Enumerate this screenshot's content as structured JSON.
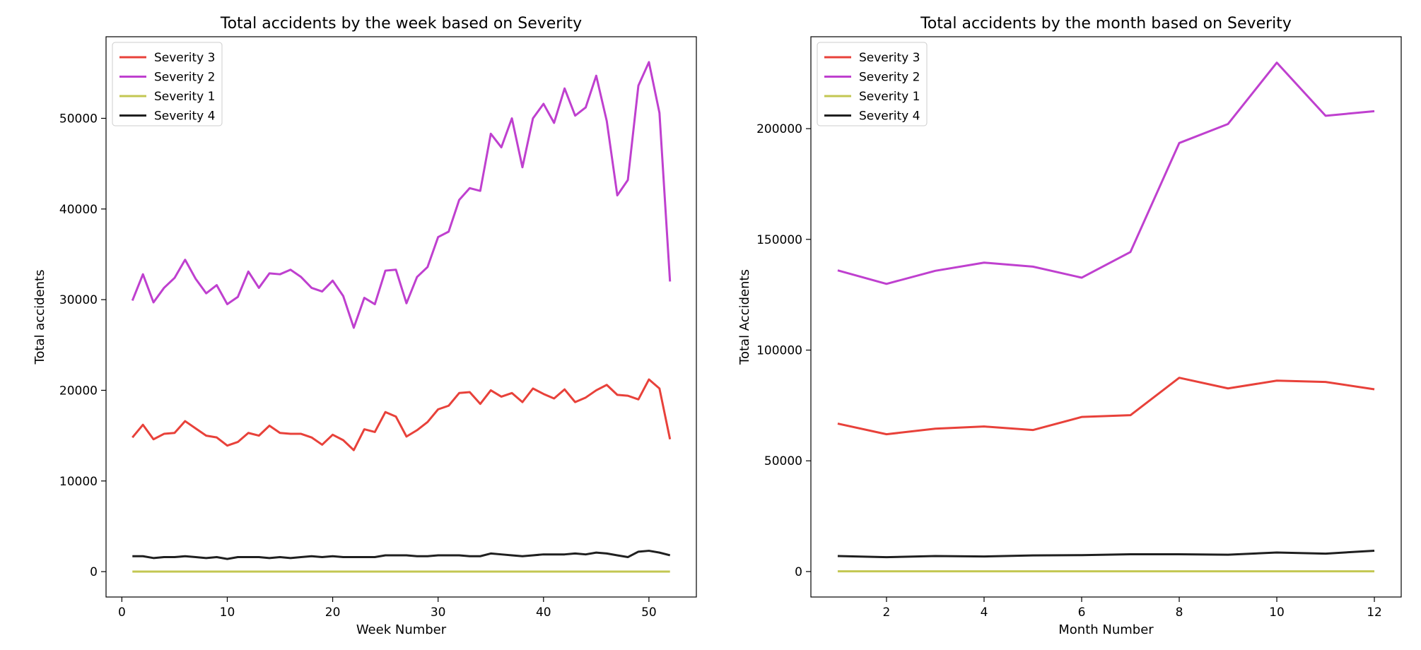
{
  "colors": {
    "Severity 3": "#e8413a",
    "Severity 2": "#bf40cf",
    "Severity 1": "#c3c752",
    "Severity 4": "#1f1f1f"
  },
  "chart_data": [
    {
      "type": "line",
      "title": "Total accidents by the week based on Severity",
      "xlabel": "Week Number",
      "ylabel": "Total accidents",
      "xlim": [
        -1.5,
        54.5
      ],
      "ylim": [
        -2800,
        59000
      ],
      "xticks": [
        0,
        10,
        20,
        30,
        40,
        50
      ],
      "yticks": [
        0,
        10000,
        20000,
        30000,
        40000,
        50000
      ],
      "legend_position": "upper left",
      "x": [
        1,
        2,
        3,
        4,
        5,
        6,
        7,
        8,
        9,
        10,
        11,
        12,
        13,
        14,
        15,
        16,
        17,
        18,
        19,
        20,
        21,
        22,
        23,
        24,
        25,
        26,
        27,
        28,
        29,
        30,
        31,
        32,
        33,
        34,
        35,
        36,
        37,
        38,
        39,
        40,
        41,
        42,
        43,
        44,
        45,
        46,
        47,
        48,
        49,
        50,
        51,
        52
      ],
      "series": [
        {
          "name": "Severity 3",
          "values": [
            14800,
            16200,
            14600,
            15200,
            15300,
            16600,
            15800,
            15000,
            14800,
            13900,
            14300,
            15300,
            15000,
            16100,
            15300,
            15200,
            15200,
            14800,
            14000,
            15100,
            14500,
            13400,
            15700,
            15400,
            17600,
            17100,
            14900,
            15600,
            16500,
            17900,
            18300,
            19700,
            19800,
            18500,
            20000,
            19300,
            19700,
            18700,
            20200,
            19600,
            19100,
            20100,
            18700,
            19200,
            20000,
            20600,
            19500,
            19400,
            19000,
            21200,
            20200,
            14600
          ]
        },
        {
          "name": "Severity 2",
          "values": [
            29900,
            32800,
            29700,
            31300,
            32400,
            34400,
            32300,
            30700,
            31600,
            29500,
            30300,
            33100,
            31300,
            32900,
            32800,
            33300,
            32500,
            31300,
            30900,
            32100,
            30400,
            26900,
            30200,
            29500,
            33200,
            33300,
            29600,
            32500,
            33600,
            36900,
            37500,
            41000,
            42300,
            42000,
            48300,
            46800,
            50000,
            44600,
            50000,
            51600,
            49500,
            53300,
            50300,
            51200,
            54700,
            49700,
            41500,
            43200,
            53600,
            56200,
            50600,
            32000
          ]
        },
        {
          "name": "Severity 1",
          "values": [
            10,
            10,
            10,
            10,
            10,
            10,
            10,
            10,
            10,
            10,
            10,
            10,
            10,
            10,
            10,
            10,
            10,
            10,
            10,
            10,
            10,
            10,
            10,
            10,
            10,
            10,
            10,
            10,
            10,
            10,
            10,
            10,
            10,
            10,
            10,
            10,
            10,
            10,
            10,
            10,
            10,
            10,
            10,
            10,
            10,
            10,
            10,
            10,
            10,
            10,
            10,
            10
          ]
        },
        {
          "name": "Severity 4",
          "values": [
            1700,
            1700,
            1500,
            1600,
            1600,
            1700,
            1600,
            1500,
            1600,
            1400,
            1600,
            1600,
            1600,
            1500,
            1600,
            1500,
            1600,
            1700,
            1600,
            1700,
            1600,
            1600,
            1600,
            1600,
            1800,
            1800,
            1800,
            1700,
            1700,
            1800,
            1800,
            1800,
            1700,
            1700,
            2000,
            1900,
            1800,
            1700,
            1800,
            1900,
            1900,
            1900,
            2000,
            1900,
            2100,
            2000,
            1800,
            1600,
            2200,
            2300,
            2100,
            1800
          ]
        }
      ]
    },
    {
      "type": "line",
      "title": "Total accidents by the month based on Severity",
      "xlabel": "Month Number",
      "ylabel": "Total Accidents",
      "xlim": [
        0.45,
        12.55
      ],
      "ylim": [
        -11500,
        241500
      ],
      "xticks": [
        2,
        4,
        6,
        8,
        10,
        12
      ],
      "yticks": [
        0,
        50000,
        100000,
        150000,
        200000
      ],
      "legend_position": "upper left",
      "x": [
        1,
        2,
        3,
        4,
        5,
        6,
        7,
        8,
        9,
        10,
        11,
        12
      ],
      "series": [
        {
          "name": "Severity 3",
          "values": [
            66800,
            62000,
            64500,
            65500,
            63900,
            69800,
            70600,
            87500,
            82700,
            86200,
            85600,
            82300
          ]
        },
        {
          "name": "Severity 2",
          "values": [
            136000,
            129900,
            135800,
            139500,
            137700,
            132700,
            144300,
            193500,
            202100,
            229800,
            205800,
            207900
          ]
        },
        {
          "name": "Severity 1",
          "values": [
            100,
            100,
            100,
            100,
            100,
            100,
            100,
            100,
            100,
            100,
            100,
            100
          ]
        },
        {
          "name": "Severity 4",
          "values": [
            7000,
            6500,
            7000,
            6800,
            7300,
            7400,
            7800,
            7800,
            7600,
            8600,
            8100,
            9400
          ]
        }
      ]
    }
  ]
}
